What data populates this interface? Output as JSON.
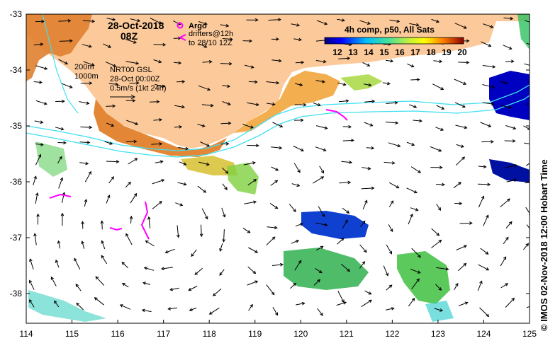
{
  "title": {
    "date": "28-Oct-2018",
    "time": "08Z"
  },
  "legend": {
    "argo_label": "Argo",
    "drifters_label": "drifters@12h",
    "drifters_sub": "to 28/10 12Z",
    "argo_color": "#ff00ff",
    "drifter_color": "#ff00ff"
  },
  "depth_labels": {
    "shallow": "200m",
    "deep": "1000m"
  },
  "current_info": {
    "model": "NRT00 GSL",
    "time": "28-Oct 00:00Z",
    "scale": "0.5m/s (1kt 24h)"
  },
  "colorbar": {
    "title": "4h comp, p50, All Sats",
    "ticks": [
      "12",
      "13",
      "14",
      "15",
      "16",
      "17",
      "18",
      "19",
      "20"
    ],
    "colors": [
      "#00007f",
      "#0000ff",
      "#007fff",
      "#00ffff",
      "#7fff7f",
      "#ffff00",
      "#ff7f00",
      "#ff0000",
      "#7f0000"
    ]
  },
  "axes": {
    "x_ticks": [
      "114",
      "115",
      "116",
      "117",
      "118",
      "119",
      "120",
      "121",
      "122",
      "123",
      "124",
      "125"
    ],
    "y_ticks": [
      "-33",
      "-34",
      "-35",
      "-36",
      "-37",
      "-38"
    ]
  },
  "credit": "© IMOS 02-Nov-2018 12:00 Hobart Time",
  "land_color": "#fcc99a"
}
